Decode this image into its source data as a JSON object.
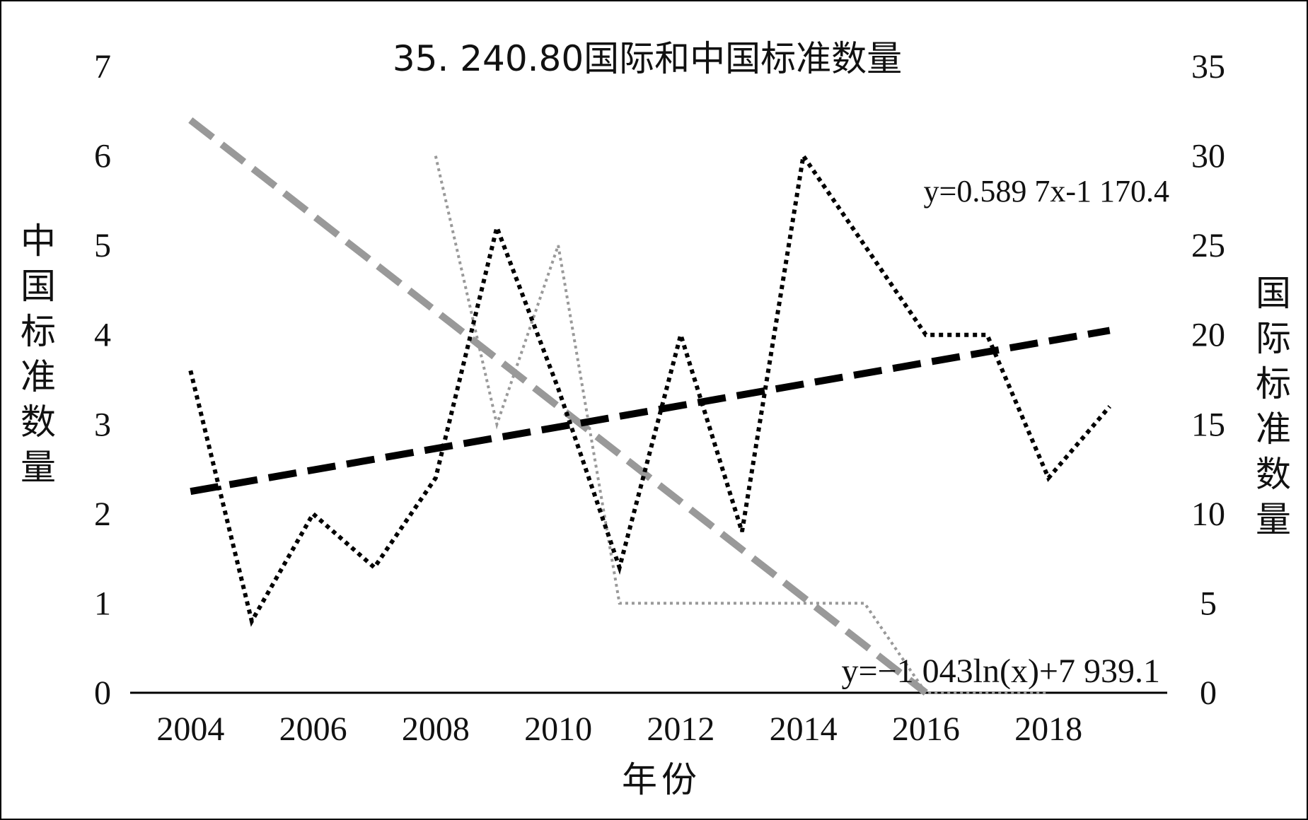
{
  "chart_data": {
    "type": "line",
    "title": "35. 240.80国际和中国标准数量",
    "xlabel": "年份",
    "ylabel_left": "中国标准数量",
    "ylabel_right": "国际标准数量",
    "x_ticks": [
      "2004",
      "2006",
      "2008",
      "2010",
      "2012",
      "2014",
      "2016",
      "2018"
    ],
    "xlim": [
      2003.5,
      2019.5
    ],
    "ylim_left": [
      0,
      7
    ],
    "ylim_right": [
      0,
      35
    ],
    "y_ticks_left": [
      "0",
      "1",
      "2",
      "3",
      "4",
      "5",
      "6",
      "7"
    ],
    "y_ticks_right": [
      "0",
      "5",
      "10",
      "15",
      "20",
      "25",
      "30",
      "35"
    ],
    "grid": false,
    "legend": "none",
    "series": [
      {
        "axis": "left",
        "style": "dotted",
        "color": "#000000",
        "points": [
          {
            "x": 2004,
            "y": 3.6
          },
          {
            "x": 2005,
            "y": 0.8
          },
          {
            "x": 2006,
            "y": 2.0
          },
          {
            "x": 2007,
            "y": 1.4
          },
          {
            "x": 2008,
            "y": 2.4
          },
          {
            "x": 2009,
            "y": 5.2
          },
          {
            "x": 2010,
            "y": 3.4
          },
          {
            "x": 2011,
            "y": 1.4
          },
          {
            "x": 2012,
            "y": 4.0
          },
          {
            "x": 2013,
            "y": 1.8
          },
          {
            "x": 2014,
            "y": 6.0
          },
          {
            "x": 2015,
            "y": 5.0
          },
          {
            "x": 2016,
            "y": 4.0
          },
          {
            "x": 2017,
            "y": 4.0
          },
          {
            "x": 2018,
            "y": 2.4
          },
          {
            "x": 2019,
            "y": 3.2
          }
        ]
      },
      {
        "axis": "right",
        "style": "dotted",
        "color": "#999999",
        "points": [
          {
            "x": 2008,
            "y": 30
          },
          {
            "x": 2009,
            "y": 15
          },
          {
            "x": 2010,
            "y": 25
          },
          {
            "x": 2011,
            "y": 5
          },
          {
            "x": 2012,
            "y": 5
          },
          {
            "x": 2013,
            "y": 5
          },
          {
            "x": 2014,
            "y": 5
          },
          {
            "x": 2015,
            "y": 5
          },
          {
            "x": 2016,
            "y": 0
          },
          {
            "x": 2017,
            "y": 0
          },
          {
            "x": 2018,
            "y": 0
          }
        ]
      },
      {
        "axis": "left",
        "style": "dashed-trend",
        "color": "#000000",
        "points": [
          {
            "x": 2004,
            "y": 2.25
          },
          {
            "x": 2019,
            "y": 4.05
          }
        ]
      },
      {
        "axis": "left",
        "style": "dashed-trend",
        "color": "#999999",
        "points": [
          {
            "x": 2004,
            "y": 6.4
          },
          {
            "x": 2016,
            "y": 0
          }
        ]
      }
    ],
    "annotations": [
      {
        "text": "y=0.589 7x-1 170.4"
      },
      {
        "text": "y=−1 043ln(x)+7 939.1"
      }
    ]
  }
}
